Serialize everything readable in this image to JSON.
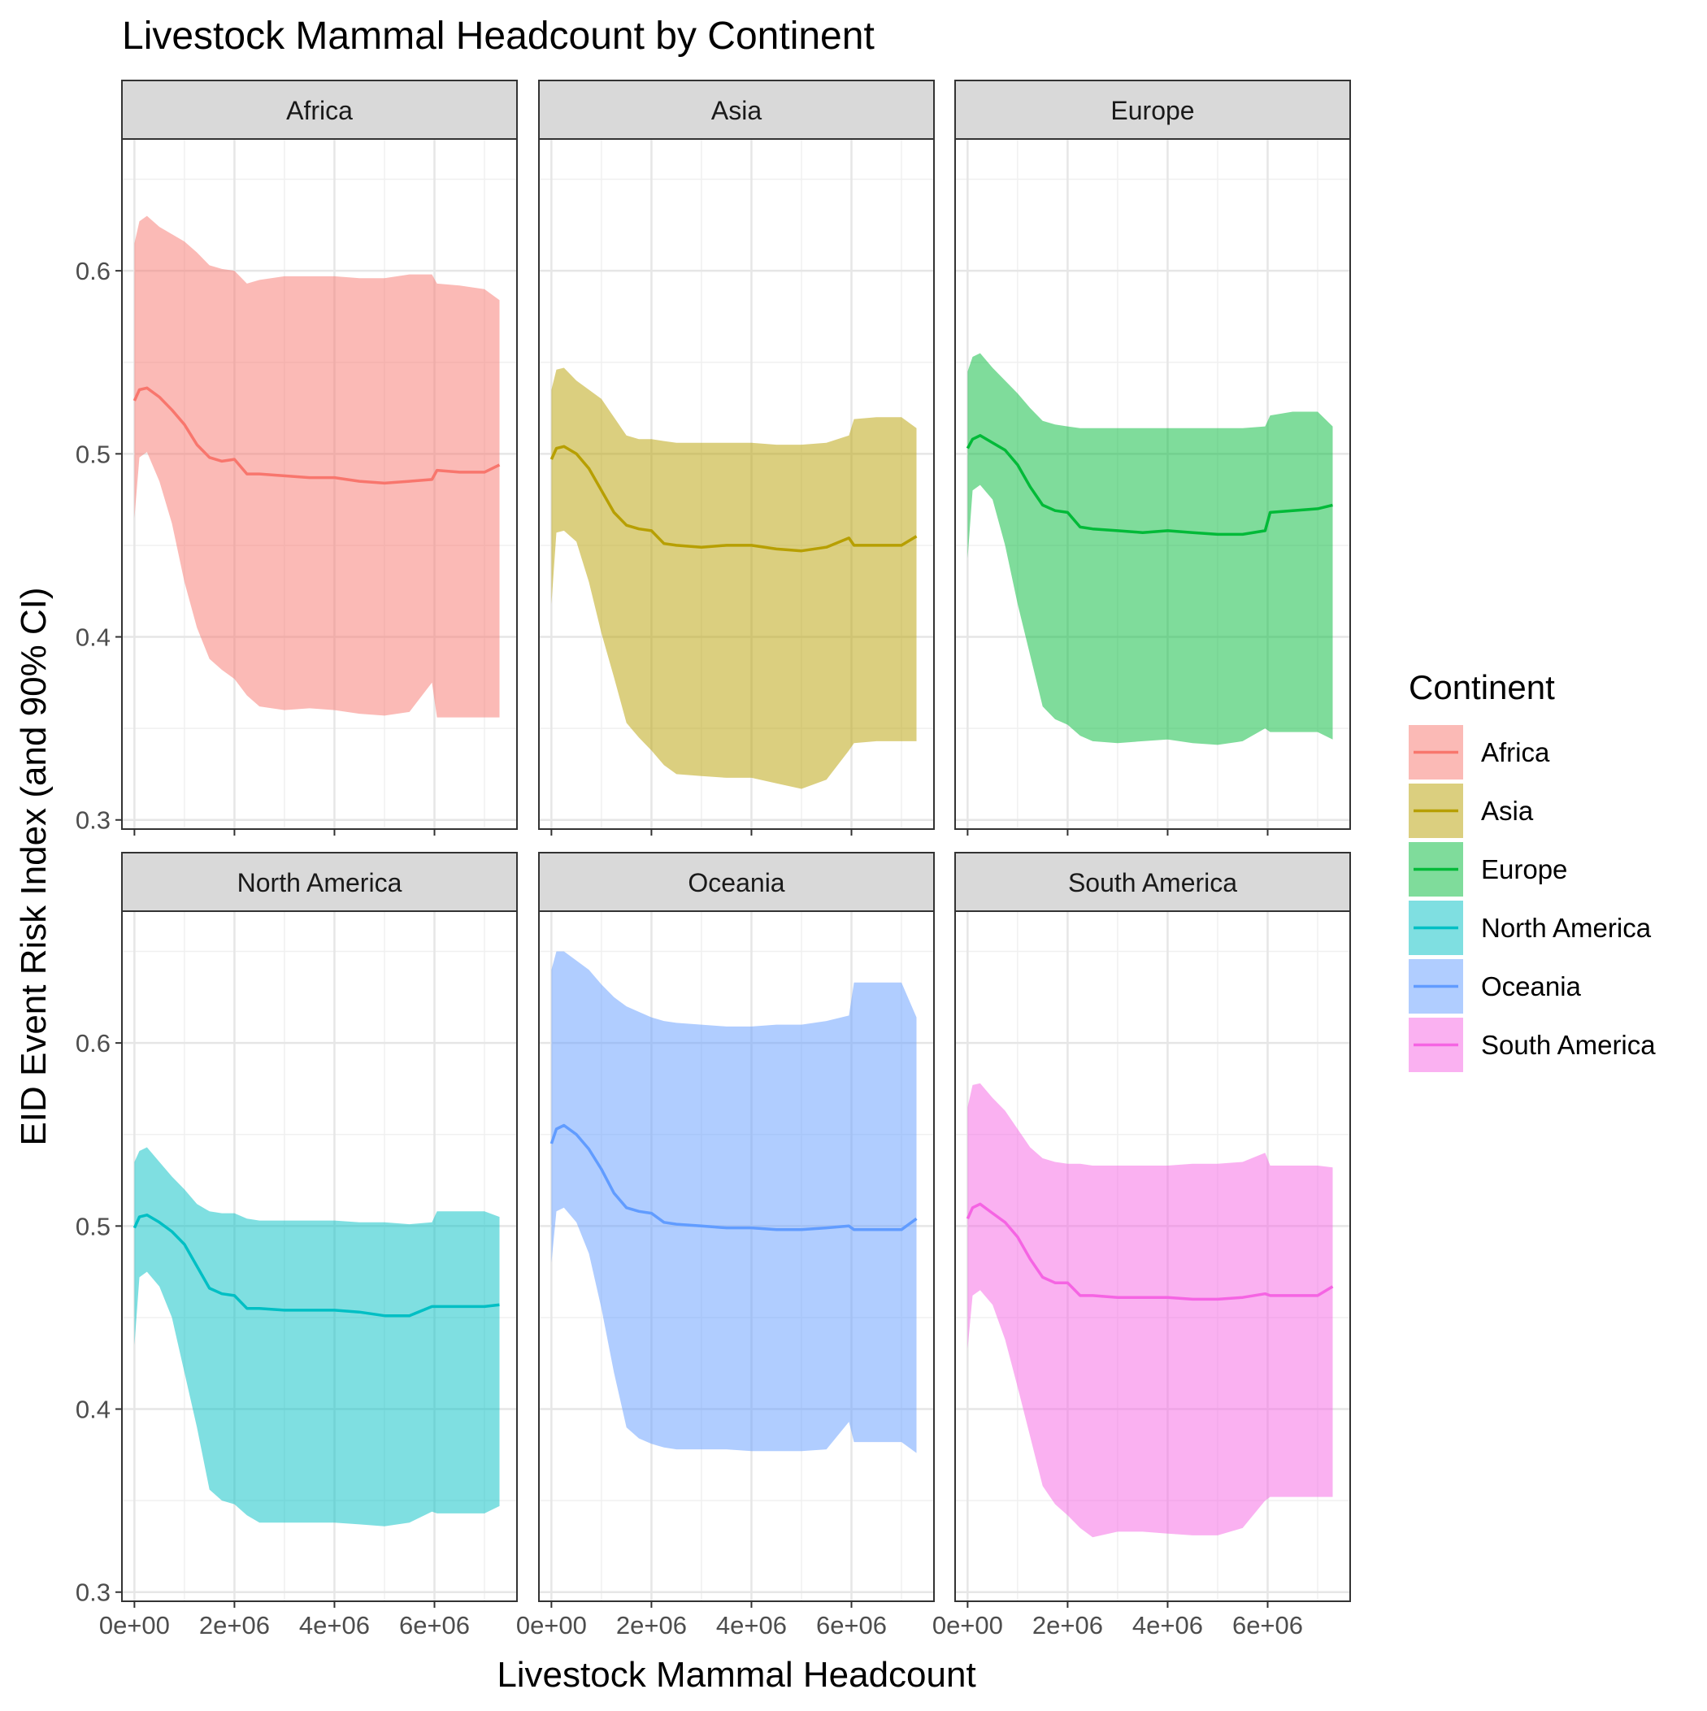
{
  "chart_data": {
    "type": "area",
    "title": "Livestock Mammal Headcount by Continent",
    "xlabel": "Livestock Mammal Headcount",
    "ylabel": "EID Event Risk Index (and 90% CI)",
    "xlim": [
      -250000,
      7650000
    ],
    "ylim": [
      0.295,
      0.672
    ],
    "x_ticks": [
      0,
      2000000,
      4000000,
      6000000
    ],
    "x_tick_labels": [
      "0e+00",
      "2e+06",
      "4e+06",
      "6e+06"
    ],
    "y_ticks": [
      0.3,
      0.4,
      0.5,
      0.6
    ],
    "y_tick_labels": [
      "0.3",
      "0.4",
      "0.5",
      "0.6"
    ],
    "grid": true,
    "facet_layout": "2 rows x 3 columns, shared axes",
    "legend": {
      "title": "Continent",
      "position": "right",
      "entries": [
        "Africa",
        "Asia",
        "Europe",
        "North America",
        "Oceania",
        "South America"
      ]
    },
    "x": [
      0,
      100000,
      250000,
      500000,
      750000,
      1000000,
      1250000,
      1500000,
      1750000,
      2000000,
      2250000,
      2500000,
      3000000,
      3500000,
      4000000,
      4500000,
      5000000,
      5500000,
      5950000,
      6050000,
      6500000,
      7000000,
      7300000
    ],
    "series": [
      {
        "name": "Africa",
        "color": "#F8766D",
        "y": [
          0.529,
          0.535,
          0.536,
          0.531,
          0.524,
          0.516,
          0.505,
          0.498,
          0.496,
          0.497,
          0.489,
          0.489,
          0.488,
          0.487,
          0.487,
          0.485,
          0.484,
          0.485,
          0.486,
          0.491,
          0.49,
          0.49,
          0.494
        ],
        "lower": [
          0.465,
          0.498,
          0.501,
          0.485,
          0.462,
          0.43,
          0.405,
          0.388,
          0.382,
          0.377,
          0.368,
          0.362,
          0.36,
          0.361,
          0.36,
          0.358,
          0.357,
          0.359,
          0.375,
          0.356,
          0.356,
          0.356,
          0.356
        ],
        "upper": [
          0.615,
          0.627,
          0.63,
          0.624,
          0.62,
          0.616,
          0.61,
          0.603,
          0.601,
          0.6,
          0.593,
          0.595,
          0.597,
          0.597,
          0.597,
          0.596,
          0.596,
          0.598,
          0.598,
          0.593,
          0.592,
          0.59,
          0.584
        ]
      },
      {
        "name": "Asia",
        "color": "#B79F00",
        "y": [
          0.497,
          0.503,
          0.504,
          0.5,
          0.492,
          0.48,
          0.468,
          0.461,
          0.459,
          0.458,
          0.451,
          0.45,
          0.449,
          0.45,
          0.45,
          0.448,
          0.447,
          0.449,
          0.454,
          0.45,
          0.45,
          0.45,
          0.455
        ],
        "lower": [
          0.418,
          0.457,
          0.458,
          0.452,
          0.43,
          0.402,
          0.378,
          0.353,
          0.345,
          0.338,
          0.33,
          0.325,
          0.324,
          0.323,
          0.323,
          0.32,
          0.317,
          0.322,
          0.338,
          0.342,
          0.343,
          0.343,
          0.343
        ],
        "upper": [
          0.535,
          0.546,
          0.547,
          0.54,
          0.535,
          0.53,
          0.52,
          0.51,
          0.508,
          0.508,
          0.507,
          0.506,
          0.506,
          0.506,
          0.506,
          0.505,
          0.505,
          0.506,
          0.51,
          0.519,
          0.52,
          0.52,
          0.514
        ]
      },
      {
        "name": "Europe",
        "color": "#00BA38",
        "y": [
          0.503,
          0.508,
          0.51,
          0.506,
          0.502,
          0.494,
          0.482,
          0.472,
          0.469,
          0.468,
          0.46,
          0.459,
          0.458,
          0.457,
          0.458,
          0.457,
          0.456,
          0.456,
          0.458,
          0.468,
          0.469,
          0.47,
          0.472
        ],
        "lower": [
          0.443,
          0.48,
          0.483,
          0.475,
          0.45,
          0.418,
          0.39,
          0.362,
          0.355,
          0.352,
          0.346,
          0.343,
          0.342,
          0.343,
          0.344,
          0.342,
          0.341,
          0.343,
          0.35,
          0.348,
          0.348,
          0.348,
          0.344
        ],
        "upper": [
          0.545,
          0.553,
          0.555,
          0.547,
          0.54,
          0.533,
          0.525,
          0.518,
          0.516,
          0.515,
          0.514,
          0.514,
          0.514,
          0.514,
          0.514,
          0.514,
          0.514,
          0.514,
          0.515,
          0.521,
          0.523,
          0.523,
          0.515
        ]
      },
      {
        "name": "North America",
        "color": "#00BFC4",
        "y": [
          0.499,
          0.505,
          0.506,
          0.502,
          0.497,
          0.49,
          0.478,
          0.466,
          0.463,
          0.462,
          0.455,
          0.455,
          0.454,
          0.454,
          0.454,
          0.453,
          0.451,
          0.451,
          0.456,
          0.456,
          0.456,
          0.456,
          0.457
        ],
        "lower": [
          0.435,
          0.472,
          0.475,
          0.467,
          0.45,
          0.42,
          0.39,
          0.356,
          0.35,
          0.348,
          0.342,
          0.338,
          0.338,
          0.338,
          0.338,
          0.337,
          0.336,
          0.338,
          0.344,
          0.343,
          0.343,
          0.343,
          0.347
        ],
        "upper": [
          0.535,
          0.541,
          0.543,
          0.535,
          0.527,
          0.52,
          0.512,
          0.508,
          0.507,
          0.507,
          0.504,
          0.503,
          0.503,
          0.503,
          0.503,
          0.502,
          0.502,
          0.501,
          0.502,
          0.508,
          0.508,
          0.508,
          0.505
        ]
      },
      {
        "name": "Oceania",
        "color": "#619CFF",
        "y": [
          0.545,
          0.553,
          0.555,
          0.55,
          0.542,
          0.531,
          0.518,
          0.51,
          0.508,
          0.507,
          0.502,
          0.501,
          0.5,
          0.499,
          0.499,
          0.498,
          0.498,
          0.499,
          0.5,
          0.498,
          0.498,
          0.498,
          0.504
        ],
        "lower": [
          0.48,
          0.508,
          0.51,
          0.502,
          0.485,
          0.455,
          0.42,
          0.39,
          0.384,
          0.381,
          0.379,
          0.378,
          0.378,
          0.378,
          0.377,
          0.377,
          0.377,
          0.378,
          0.393,
          0.382,
          0.382,
          0.382,
          0.376
        ],
        "upper": [
          0.64,
          0.65,
          0.65,
          0.645,
          0.64,
          0.632,
          0.625,
          0.62,
          0.617,
          0.614,
          0.612,
          0.611,
          0.61,
          0.609,
          0.609,
          0.61,
          0.61,
          0.612,
          0.615,
          0.633,
          0.633,
          0.633,
          0.614
        ]
      },
      {
        "name": "South America",
        "color": "#F564E3",
        "y": [
          0.504,
          0.51,
          0.512,
          0.507,
          0.502,
          0.494,
          0.482,
          0.472,
          0.469,
          0.469,
          0.462,
          0.462,
          0.461,
          0.461,
          0.461,
          0.46,
          0.46,
          0.461,
          0.463,
          0.462,
          0.462,
          0.462,
          0.467
        ],
        "lower": [
          0.433,
          0.462,
          0.465,
          0.457,
          0.438,
          0.412,
          0.385,
          0.358,
          0.348,
          0.342,
          0.335,
          0.33,
          0.333,
          0.333,
          0.332,
          0.331,
          0.331,
          0.335,
          0.35,
          0.352,
          0.352,
          0.352,
          0.352
        ],
        "upper": [
          0.565,
          0.577,
          0.578,
          0.57,
          0.563,
          0.553,
          0.543,
          0.537,
          0.535,
          0.534,
          0.534,
          0.533,
          0.533,
          0.533,
          0.533,
          0.534,
          0.534,
          0.535,
          0.54,
          0.533,
          0.533,
          0.533,
          0.532
        ]
      }
    ]
  }
}
